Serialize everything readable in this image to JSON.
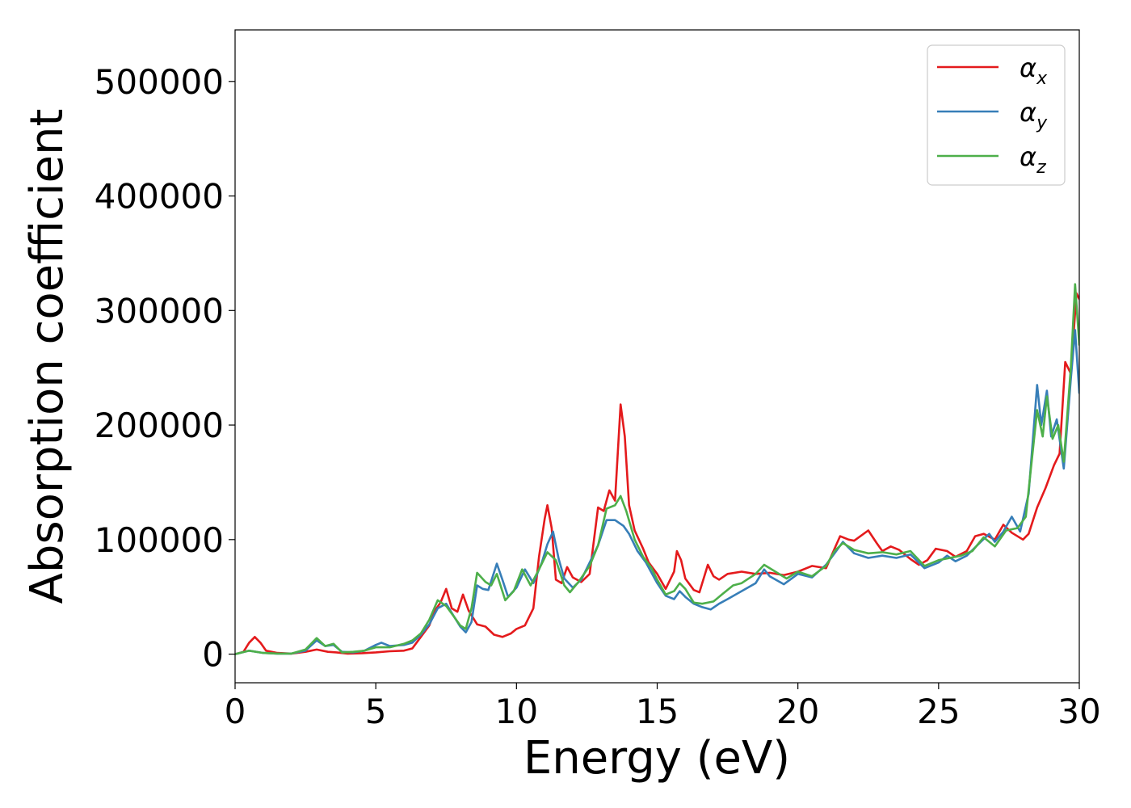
{
  "chart_data": {
    "type": "line",
    "title": "",
    "xlabel": "Energy (eV)",
    "ylabel": "Absorption coefficient",
    "xlim": [
      0,
      30
    ],
    "ylim": [
      -25000,
      545000
    ],
    "xticks": [
      0,
      5,
      10,
      15,
      20,
      25,
      30
    ],
    "xtick_labels": [
      "0",
      "5",
      "10",
      "15",
      "20",
      "25",
      "30"
    ],
    "yticks": [
      0,
      100000,
      200000,
      300000,
      400000,
      500000
    ],
    "ytick_labels": [
      "0",
      "100000",
      "200000",
      "300000",
      "400000",
      "500000"
    ],
    "grid": false,
    "legend_position": "top-right",
    "series": [
      {
        "name": "αx",
        "name_base": "α",
        "name_sub": "x",
        "color": "#e41a1c",
        "points": [
          [
            0,
            0
          ],
          [
            0.3,
            2000
          ],
          [
            0.5,
            10000
          ],
          [
            0.7,
            15000
          ],
          [
            0.9,
            10000
          ],
          [
            1.1,
            3000
          ],
          [
            1.5,
            1000
          ],
          [
            2.0,
            500
          ],
          [
            2.5,
            2000
          ],
          [
            2.9,
            4000
          ],
          [
            3.3,
            2000
          ],
          [
            3.6,
            1500
          ],
          [
            4.0,
            500
          ],
          [
            4.5,
            800
          ],
          [
            5.0,
            1500
          ],
          [
            5.5,
            2500
          ],
          [
            6.0,
            3000
          ],
          [
            6.3,
            5000
          ],
          [
            6.6,
            15000
          ],
          [
            6.9,
            25000
          ],
          [
            7.1,
            38000
          ],
          [
            7.3,
            45000
          ],
          [
            7.5,
            57000
          ],
          [
            7.7,
            40000
          ],
          [
            7.9,
            37000
          ],
          [
            8.1,
            52000
          ],
          [
            8.3,
            38000
          ],
          [
            8.6,
            26000
          ],
          [
            8.9,
            24000
          ],
          [
            9.2,
            17000
          ],
          [
            9.5,
            15000
          ],
          [
            9.8,
            18000
          ],
          [
            10.0,
            22000
          ],
          [
            10.3,
            25000
          ],
          [
            10.6,
            40000
          ],
          [
            10.8,
            85000
          ],
          [
            11.0,
            118000
          ],
          [
            11.1,
            130000
          ],
          [
            11.25,
            110000
          ],
          [
            11.4,
            65000
          ],
          [
            11.6,
            62000
          ],
          [
            11.8,
            76000
          ],
          [
            12.0,
            67000
          ],
          [
            12.3,
            63000
          ],
          [
            12.6,
            70000
          ],
          [
            12.9,
            128000
          ],
          [
            13.1,
            125000
          ],
          [
            13.3,
            143000
          ],
          [
            13.5,
            134000
          ],
          [
            13.7,
            218000
          ],
          [
            13.85,
            190000
          ],
          [
            14.0,
            130000
          ],
          [
            14.2,
            108000
          ],
          [
            14.5,
            92000
          ],
          [
            14.7,
            80000
          ],
          [
            15.0,
            70000
          ],
          [
            15.3,
            57000
          ],
          [
            15.6,
            72000
          ],
          [
            15.7,
            90000
          ],
          [
            15.85,
            82000
          ],
          [
            16.0,
            66000
          ],
          [
            16.3,
            56000
          ],
          [
            16.5,
            54000
          ],
          [
            16.8,
            78000
          ],
          [
            17.0,
            68000
          ],
          [
            17.2,
            65000
          ],
          [
            17.5,
            70000
          ],
          [
            18.0,
            72000
          ],
          [
            18.5,
            70000
          ],
          [
            19.0,
            71000
          ],
          [
            19.5,
            69000
          ],
          [
            20.0,
            72000
          ],
          [
            20.5,
            77000
          ],
          [
            21.0,
            75000
          ],
          [
            21.3,
            92000
          ],
          [
            21.5,
            103000
          ],
          [
            21.8,
            100000
          ],
          [
            22.0,
            99000
          ],
          [
            22.5,
            108000
          ],
          [
            22.8,
            97000
          ],
          [
            23.0,
            90000
          ],
          [
            23.3,
            94000
          ],
          [
            23.6,
            91000
          ],
          [
            24.0,
            83000
          ],
          [
            24.3,
            78000
          ],
          [
            24.6,
            82000
          ],
          [
            24.9,
            92000
          ],
          [
            25.3,
            90000
          ],
          [
            25.6,
            85000
          ],
          [
            26.0,
            90000
          ],
          [
            26.3,
            103000
          ],
          [
            26.6,
            105000
          ],
          [
            27.0,
            100000
          ],
          [
            27.3,
            113000
          ],
          [
            27.6,
            106000
          ],
          [
            28.0,
            100000
          ],
          [
            28.2,
            105000
          ],
          [
            28.5,
            128000
          ],
          [
            28.8,
            145000
          ],
          [
            29.1,
            165000
          ],
          [
            29.3,
            175000
          ],
          [
            29.5,
            255000
          ],
          [
            29.7,
            245000
          ],
          [
            29.9,
            315000
          ],
          [
            30.0,
            310000
          ]
        ]
      },
      {
        "name": "αy",
        "name_base": "α",
        "name_sub": "y",
        "color": "#377eb8",
        "points": [
          [
            0,
            0
          ],
          [
            0.5,
            3000
          ],
          [
            1.0,
            1000
          ],
          [
            1.5,
            500
          ],
          [
            2.0,
            500
          ],
          [
            2.5,
            3000
          ],
          [
            2.9,
            12000
          ],
          [
            3.2,
            7000
          ],
          [
            3.5,
            8000
          ],
          [
            3.8,
            2000
          ],
          [
            4.2,
            1500
          ],
          [
            4.6,
            3000
          ],
          [
            5.0,
            8000
          ],
          [
            5.2,
            10000
          ],
          [
            5.5,
            7000
          ],
          [
            6.0,
            8000
          ],
          [
            6.3,
            10000
          ],
          [
            6.6,
            17000
          ],
          [
            6.9,
            26000
          ],
          [
            7.2,
            40000
          ],
          [
            7.5,
            44000
          ],
          [
            7.8,
            32000
          ],
          [
            8.0,
            24000
          ],
          [
            8.2,
            19000
          ],
          [
            8.4,
            28000
          ],
          [
            8.6,
            60000
          ],
          [
            8.8,
            57000
          ],
          [
            9.0,
            56000
          ],
          [
            9.3,
            79000
          ],
          [
            9.5,
            65000
          ],
          [
            9.7,
            50000
          ],
          [
            10.0,
            58000
          ],
          [
            10.3,
            74000
          ],
          [
            10.6,
            62000
          ],
          [
            10.9,
            80000
          ],
          [
            11.1,
            96000
          ],
          [
            11.3,
            107000
          ],
          [
            11.5,
            83000
          ],
          [
            11.7,
            66000
          ],
          [
            12.0,
            58000
          ],
          [
            12.3,
            65000
          ],
          [
            12.6,
            80000
          ],
          [
            12.9,
            95000
          ],
          [
            13.2,
            117000
          ],
          [
            13.5,
            117000
          ],
          [
            13.8,
            112000
          ],
          [
            14.0,
            105000
          ],
          [
            14.3,
            90000
          ],
          [
            14.6,
            80000
          ],
          [
            15.0,
            62000
          ],
          [
            15.3,
            51000
          ],
          [
            15.6,
            48000
          ],
          [
            15.8,
            55000
          ],
          [
            16.0,
            50000
          ],
          [
            16.3,
            44000
          ],
          [
            16.6,
            41000
          ],
          [
            16.9,
            39000
          ],
          [
            17.2,
            44000
          ],
          [
            17.5,
            48000
          ],
          [
            18.0,
            55000
          ],
          [
            18.5,
            62000
          ],
          [
            18.8,
            74000
          ],
          [
            19.0,
            68000
          ],
          [
            19.5,
            61000
          ],
          [
            20.0,
            70000
          ],
          [
            20.5,
            67000
          ],
          [
            21.0,
            78000
          ],
          [
            21.3,
            88000
          ],
          [
            21.6,
            98000
          ],
          [
            22.0,
            88000
          ],
          [
            22.5,
            84000
          ],
          [
            23.0,
            86000
          ],
          [
            23.5,
            84000
          ],
          [
            24.0,
            87000
          ],
          [
            24.5,
            75000
          ],
          [
            25.0,
            80000
          ],
          [
            25.3,
            86000
          ],
          [
            25.6,
            81000
          ],
          [
            26.0,
            86000
          ],
          [
            26.5,
            98000
          ],
          [
            26.8,
            105000
          ],
          [
            27.0,
            98000
          ],
          [
            27.3,
            107000
          ],
          [
            27.6,
            120000
          ],
          [
            27.9,
            107000
          ],
          [
            28.2,
            140000
          ],
          [
            28.5,
            235000
          ],
          [
            28.65,
            200000
          ],
          [
            28.85,
            230000
          ],
          [
            29.0,
            190000
          ],
          [
            29.2,
            205000
          ],
          [
            29.45,
            162000
          ],
          [
            29.7,
            240000
          ],
          [
            29.85,
            283000
          ],
          [
            30.0,
            228000
          ]
        ]
      },
      {
        "name": "αz",
        "name_base": "α",
        "name_sub": "z",
        "color": "#4daf4a",
        "points": [
          [
            0,
            0
          ],
          [
            0.5,
            3000
          ],
          [
            1.0,
            1000
          ],
          [
            1.5,
            500
          ],
          [
            2.0,
            500
          ],
          [
            2.5,
            4000
          ],
          [
            2.9,
            14000
          ],
          [
            3.2,
            7000
          ],
          [
            3.5,
            9000
          ],
          [
            3.8,
            1500
          ],
          [
            4.2,
            2000
          ],
          [
            4.6,
            3000
          ],
          [
            5.0,
            6000
          ],
          [
            5.5,
            6000
          ],
          [
            6.0,
            9000
          ],
          [
            6.3,
            12000
          ],
          [
            6.6,
            18000
          ],
          [
            6.9,
            30000
          ],
          [
            7.2,
            47000
          ],
          [
            7.5,
            42000
          ],
          [
            7.8,
            32000
          ],
          [
            8.0,
            25000
          ],
          [
            8.2,
            22000
          ],
          [
            8.4,
            40000
          ],
          [
            8.6,
            71000
          ],
          [
            8.9,
            63000
          ],
          [
            9.1,
            60000
          ],
          [
            9.3,
            70000
          ],
          [
            9.6,
            47000
          ],
          [
            9.9,
            55000
          ],
          [
            10.2,
            74000
          ],
          [
            10.5,
            60000
          ],
          [
            10.8,
            74000
          ],
          [
            11.1,
            89000
          ],
          [
            11.4,
            82000
          ],
          [
            11.7,
            60000
          ],
          [
            11.9,
            54000
          ],
          [
            12.2,
            63000
          ],
          [
            12.6,
            77000
          ],
          [
            12.9,
            95000
          ],
          [
            13.2,
            127000
          ],
          [
            13.5,
            130000
          ],
          [
            13.7,
            138000
          ],
          [
            13.9,
            125000
          ],
          [
            14.2,
            100000
          ],
          [
            14.5,
            85000
          ],
          [
            14.8,
            75000
          ],
          [
            15.0,
            65000
          ],
          [
            15.3,
            52000
          ],
          [
            15.6,
            55000
          ],
          [
            15.8,
            62000
          ],
          [
            16.0,
            57000
          ],
          [
            16.3,
            45000
          ],
          [
            16.6,
            44000
          ],
          [
            17.0,
            46000
          ],
          [
            17.3,
            52000
          ],
          [
            17.7,
            60000
          ],
          [
            18.0,
            62000
          ],
          [
            18.5,
            70000
          ],
          [
            18.8,
            78000
          ],
          [
            19.2,
            72000
          ],
          [
            19.6,
            66000
          ],
          [
            20.0,
            72000
          ],
          [
            20.5,
            68000
          ],
          [
            21.0,
            77000
          ],
          [
            21.3,
            90000
          ],
          [
            21.6,
            97000
          ],
          [
            22.0,
            91000
          ],
          [
            22.5,
            88000
          ],
          [
            23.0,
            89000
          ],
          [
            23.5,
            87000
          ],
          [
            24.0,
            90000
          ],
          [
            24.5,
            77000
          ],
          [
            25.0,
            82000
          ],
          [
            25.4,
            84000
          ],
          [
            25.8,
            86000
          ],
          [
            26.2,
            90000
          ],
          [
            26.6,
            102000
          ],
          [
            27.0,
            94000
          ],
          [
            27.4,
            108000
          ],
          [
            27.8,
            110000
          ],
          [
            28.1,
            120000
          ],
          [
            28.5,
            213000
          ],
          [
            28.7,
            190000
          ],
          [
            28.85,
            225000
          ],
          [
            29.05,
            188000
          ],
          [
            29.25,
            200000
          ],
          [
            29.45,
            168000
          ],
          [
            29.7,
            250000
          ],
          [
            29.85,
            323000
          ],
          [
            30.0,
            270000
          ]
        ]
      }
    ]
  }
}
